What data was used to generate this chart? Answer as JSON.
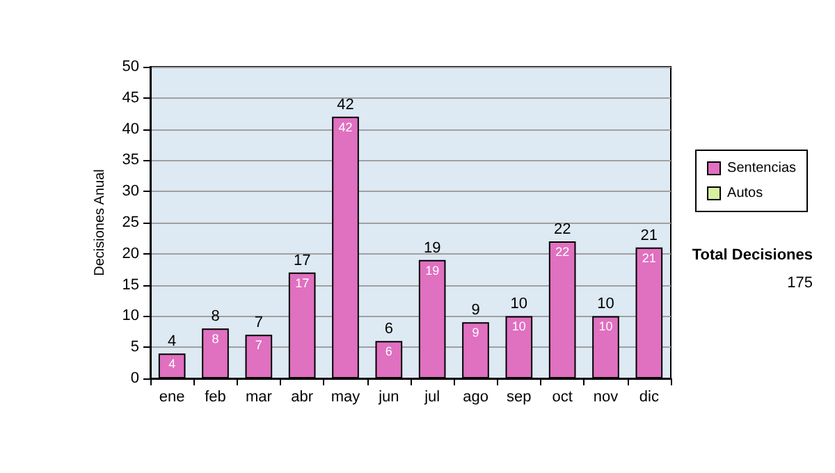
{
  "chart_data": {
    "type": "bar",
    "ylabel": "Decisiones Anual",
    "categories": [
      "ene",
      "feb",
      "mar",
      "abr",
      "may",
      "jun",
      "jul",
      "ago",
      "sep",
      "oct",
      "nov",
      "dic"
    ],
    "series": [
      {
        "name": "Sentencias",
        "color": "#e070c0",
        "values": [
          4,
          8,
          7,
          17,
          42,
          6,
          19,
          9,
          10,
          22,
          10,
          21
        ]
      },
      {
        "name": "Autos",
        "color": "#d8f0a0",
        "values": [
          null,
          null,
          null,
          null,
          null,
          null,
          null,
          null,
          null,
          null,
          null,
          null
        ]
      }
    ],
    "stacked": true,
    "data_labels": true,
    "totals": [
      "4",
      "8",
      "7",
      "17",
      "42",
      "6",
      "19",
      "9",
      "10",
      "22",
      "10",
      "21"
    ],
    "ylim": [
      0,
      50
    ],
    "yticks": [
      0,
      5,
      10,
      15,
      20,
      25,
      30,
      35,
      40,
      45,
      50
    ],
    "grid": "y",
    "legend": "right",
    "annotations": [
      "Total Decisiones",
      "175"
    ]
  }
}
